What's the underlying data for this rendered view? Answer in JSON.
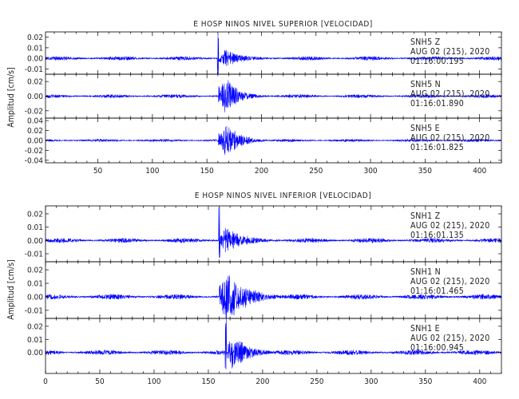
{
  "colors": {
    "trace": "#0000ff",
    "frame": "#000000",
    "text": "#222222"
  },
  "chart_data": [
    {
      "type": "line",
      "title": "E HOSP NINOS NIVEL SUPERIOR [VELOCIDAD]",
      "ylabel": "Amplitud [cm/s]",
      "xlim": [
        2,
        420
      ],
      "xticks": [
        50,
        100,
        150,
        200,
        250,
        300,
        350,
        400
      ],
      "x_ticklabels": [
        "50",
        "100",
        "150",
        "200",
        "250",
        "300",
        "350",
        "400"
      ],
      "series": [
        {
          "station": "SNH5",
          "component": "Z",
          "date": "AUG 02 (215), 2020",
          "time": "01:16:00.195",
          "ylim": [
            -0.015,
            0.025
          ],
          "yticks": [
            -0.01,
            0.0,
            0.01,
            0.02
          ],
          "ytick_labels": [
            "-0.01",
            "0.00",
            "0.01",
            "0.02"
          ],
          "noise": 0.0012,
          "arrival_s": 159.5,
          "peak": 0.025,
          "coda_peak": 0.008,
          "decay_s": 16
        },
        {
          "station": "SNH5",
          "component": "N",
          "date": "AUG 02 (215), 2020",
          "time": "01:16:01.890",
          "ylim": [
            -0.03,
            0.03
          ],
          "yticks": [
            -0.02,
            0.0,
            0.02
          ],
          "ytick_labels": [
            "-0.02",
            "0.00",
            "0.02"
          ],
          "noise": 0.0015,
          "arrival_s": 160.5,
          "peak": 0.014,
          "coda_peak": 0.022,
          "decay_s": 12
        },
        {
          "station": "SNH5",
          "component": "E",
          "date": "AUG 02 (215), 2020",
          "time": "01:16:01.825",
          "ylim": [
            -0.045,
            0.045
          ],
          "yticks": [
            -0.04,
            -0.02,
            0.0,
            0.02,
            0.04
          ],
          "ytick_labels": [
            "-0.04",
            "-0.02",
            "0.00",
            "0.02",
            "0.04"
          ],
          "noise": 0.0018,
          "arrival_s": 160.5,
          "peak": 0.016,
          "coda_peak": 0.03,
          "decay_s": 13
        }
      ]
    },
    {
      "type": "line",
      "title": "E HOSP NINOS NIVEL INFERIOR [VELOCIDAD]",
      "ylabel": "Amplitud [cm/s]",
      "xlim": [
        0,
        420
      ],
      "xticks": [
        0,
        50,
        100,
        150,
        200,
        250,
        300,
        350,
        400
      ],
      "x_ticklabels": [
        "0",
        "50",
        "100",
        "150",
        "200",
        "250",
        "300",
        "350",
        "400"
      ],
      "series": [
        {
          "station": "SNH1",
          "component": "Z",
          "date": "AUG 02 (215), 2020",
          "time": "01:16:01.135",
          "ylim": [
            -0.016,
            0.026
          ],
          "yticks": [
            -0.01,
            0.0,
            0.01,
            0.02
          ],
          "ytick_labels": [
            "-0.01",
            "0.00",
            "0.01",
            "0.02"
          ],
          "noise": 0.0011,
          "arrival_s": 159.5,
          "peak": 0.025,
          "coda_peak": 0.009,
          "decay_s": 17
        },
        {
          "station": "SNH1",
          "component": "N",
          "date": "AUG 02 (215), 2020",
          "time": "01:16:01.465",
          "ylim": [
            -0.016,
            0.026
          ],
          "yticks": [
            -0.01,
            0.0,
            0.01,
            0.02
          ],
          "ytick_labels": [
            "-0.01",
            "0.00",
            "0.01",
            "0.02"
          ],
          "noise": 0.0012,
          "arrival_s": 160.0,
          "peak": 0.01,
          "coda_peak": 0.018,
          "decay_s": 18
        },
        {
          "station": "SNH1",
          "component": "E",
          "date": "AUG 02 (215), 2020",
          "time": "01:16:00.945",
          "ylim": [
            -0.016,
            0.026
          ],
          "yticks": [
            0.0,
            0.01,
            0.02
          ],
          "ytick_labels": [
            "0.00",
            "0.01",
            "0.02"
          ],
          "noise": 0.0012,
          "arrival_s": 165.5,
          "peak": 0.026,
          "coda_peak": 0.012,
          "decay_s": 15
        }
      ]
    }
  ]
}
